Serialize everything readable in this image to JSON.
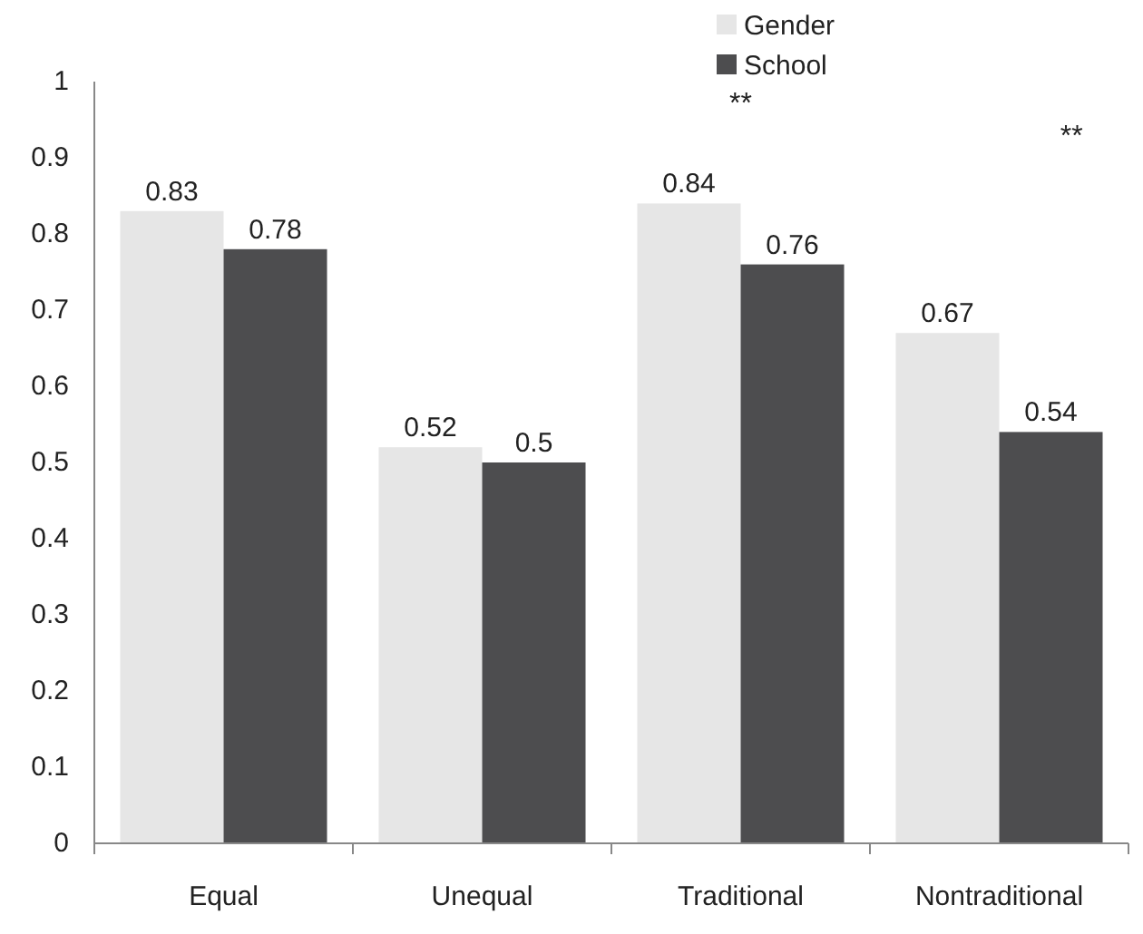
{
  "chart_data": {
    "type": "bar",
    "categories": [
      "Equal",
      "Unequal",
      "Traditional",
      "Nontraditional"
    ],
    "series": [
      {
        "name": "Gender",
        "color": "#e6e6e6",
        "values": [
          0.83,
          0.52,
          0.84,
          0.67
        ]
      },
      {
        "name": "School",
        "color": "#4d4d4f",
        "values": [
          0.78,
          0.5,
          0.76,
          0.54
        ]
      }
    ],
    "ylim": [
      0,
      1
    ],
    "yticks": [
      0,
      0.1,
      0.2,
      0.3,
      0.4,
      0.5,
      0.6,
      0.7,
      0.8,
      0.9,
      1
    ],
    "data_labels": true,
    "grid": false,
    "legend": "top right",
    "annotations": [
      "**",
      "**"
    ]
  }
}
